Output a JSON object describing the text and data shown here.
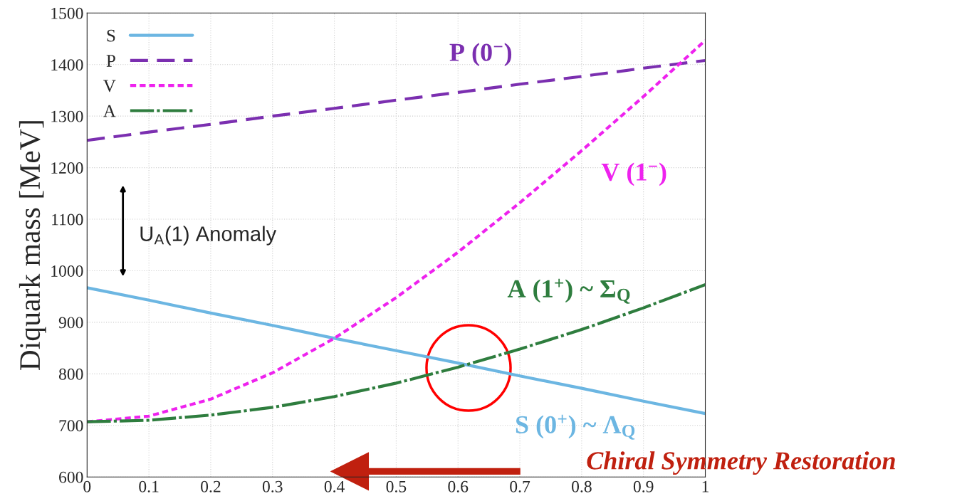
{
  "chart_data": {
    "type": "line",
    "ylabel": "Diquark mass [MeV]",
    "x": [
      0,
      0.1,
      0.2,
      0.3,
      0.4,
      0.5,
      0.6,
      0.7,
      0.8,
      0.9,
      1.0
    ],
    "series": [
      {
        "name": "S",
        "color": "#6cb6e2",
        "line_style": "solid",
        "values": [
          967,
          943,
          918,
          894,
          869,
          845,
          821,
          796,
          772,
          747,
          723
        ]
      },
      {
        "name": "P",
        "color": "#7b2fb0",
        "line_style": "dashed",
        "values": [
          1253,
          1269,
          1284,
          1300,
          1315,
          1331,
          1346,
          1362,
          1377,
          1393,
          1408
        ]
      },
      {
        "name": "V",
        "color": "#ee22ee",
        "line_style": "dotted",
        "values": [
          707,
          718,
          751,
          802,
          869,
          948,
          1036,
          1132,
          1233,
          1338,
          1447
        ]
      },
      {
        "name": "A",
        "color": "#2e7d3e",
        "line_style": "dashdot",
        "values": [
          707,
          710,
          720,
          735,
          756,
          782,
          813,
          848,
          886,
          928,
          973
        ]
      }
    ],
    "xlim": [
      0,
      1
    ],
    "xticks": [
      0,
      0.1,
      0.2,
      0.3,
      0.4,
      0.5,
      0.6,
      0.7,
      0.8,
      0.9,
      1
    ],
    "ylim": [
      600,
      1500
    ],
    "yticks": [
      600,
      700,
      800,
      900,
      1000,
      1100,
      1200,
      1300,
      1400,
      1500
    ],
    "grid": true,
    "legend": "top left",
    "annotations": [
      "S (0$^{+}$) ~ Λ$_{Q}$",
      "P (0$^{−}$)",
      "V (1$^{−}$)",
      "A (1$^{+}$) ~ Σ$_{Q}$",
      "U$_{A}$(1) Anomaly",
      "Chiral Symmetry Restoration"
    ]
  }
}
